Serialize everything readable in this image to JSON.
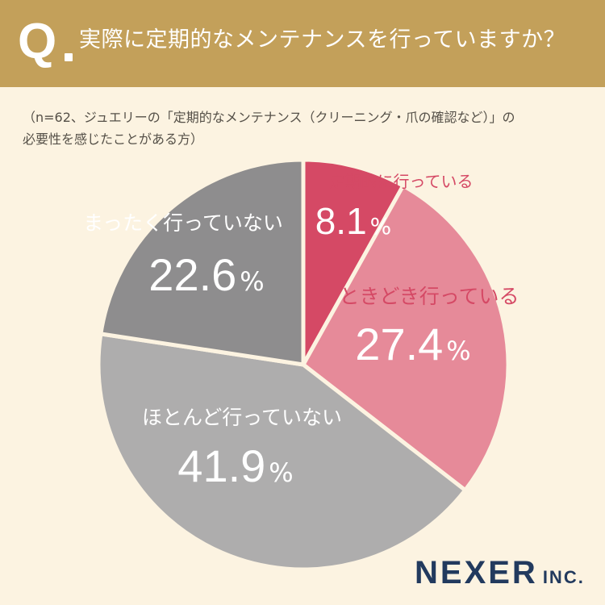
{
  "header": {
    "q_mark": "Q",
    "question": "実際に定期的なメンテナンスを行っていますか？"
  },
  "note": {
    "line1": "（n=62、ジュエリーの「定期的なメンテナンス（クリーニング・爪の確認など）」の",
    "line2": "必要性を感じたことがある方）"
  },
  "chart_data": {
    "type": "pie",
    "slices": [
      {
        "label": "定期的に行っている",
        "value": 8.1,
        "display": "8.1",
        "color": "#d54965",
        "text_color": "#ffffff",
        "label_color": "#d54965"
      },
      {
        "label": "ときどき行っている",
        "value": 27.4,
        "display": "27.4",
        "color": "#e68a99",
        "text_color": "#ffffff",
        "label_color": "#d54965"
      },
      {
        "label": "ほとんど行っていない",
        "value": 41.9,
        "display": "41.9",
        "color": "#aeadad",
        "text_color": "#ffffff",
        "label_color": "#ffffff"
      },
      {
        "label": "まったく行っていない",
        "value": 22.6,
        "display": "22.6",
        "color": "#8e8d8e",
        "text_color": "#ffffff",
        "label_color": "#ffffff"
      }
    ],
    "unit": "%",
    "start": "12 o'clock",
    "direction": "clockwise"
  },
  "brand": {
    "name": "NEXER",
    "suffix": "INC."
  }
}
